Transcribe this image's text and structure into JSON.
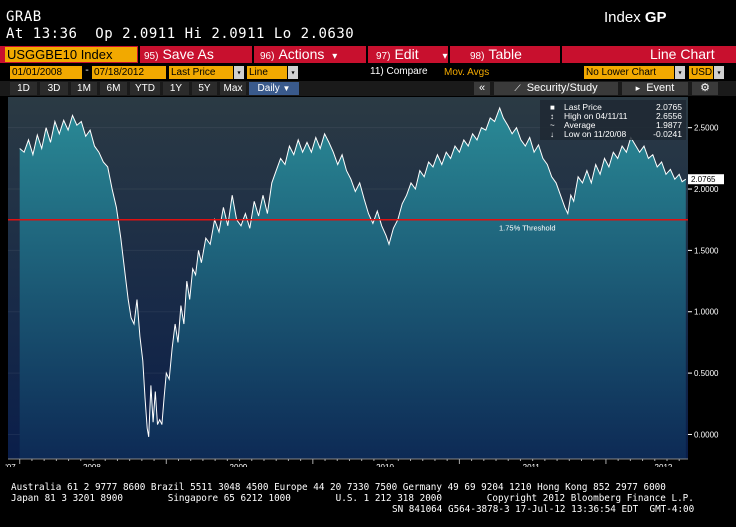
{
  "header": {
    "left_title": "GRAB",
    "right_title_prefix": "Index",
    "right_title_code": "GP",
    "quote_line": "At 13:36  Op 2.0911 Hi 2.0911 Lo 2.0630"
  },
  "toolbar": {
    "ticker": "USGGBE10 Index",
    "save_num": "95)",
    "save_label": "Save As",
    "actions_num": "96)",
    "actions_label": "Actions",
    "actions_arrow": "▾",
    "edit_num": "97)",
    "edit_label": "Edit",
    "edit_arrow": "▾",
    "table_num": "98)",
    "table_label": "Table",
    "chart_type": "Line Chart"
  },
  "controls": {
    "start_date": "01/01/2008",
    "dash": "-",
    "end_date": "07/18/2012",
    "price_field": "Last Price",
    "line_type": "Line",
    "compare": "11) Compare",
    "mov_avgs": "Mov. Avgs",
    "lower_chart": "No Lower Chart",
    "currency": "USD"
  },
  "tabs": {
    "periods": [
      "1D",
      "3D",
      "1M",
      "6M",
      "YTD",
      "1Y",
      "5Y",
      "Max"
    ],
    "frequency": "Daily",
    "frequency_arrow": "▼",
    "collapse": "«",
    "security_study": "Security/Study",
    "event": "Event",
    "gear": "⚙"
  },
  "legend": {
    "rows": [
      {
        "label": "Last Price",
        "value": "2.0765"
      },
      {
        "label": "High on 04/11/11",
        "value": "2.6556"
      },
      {
        "label": "Average",
        "value": "1.9877"
      },
      {
        "label": "Low on 11/20/08",
        "value": "-0.0241"
      }
    ]
  },
  "chart_data": {
    "type": "area",
    "series": [
      {
        "name": "Last Price",
        "color": "#ffffff",
        "fill_top": "#2a8a96",
        "fill_bottom": "#0d2a55"
      }
    ],
    "ylim": [
      -0.2,
      2.75
    ],
    "yticks": [
      0.0,
      0.5,
      1.0,
      1.5,
      2.0,
      2.5
    ],
    "ytick_labels": [
      "0.0000",
      "0.5000",
      "1.0000",
      "1.5000",
      "2.0000",
      "2.5000"
    ],
    "x_tick_labels": [
      "'07",
      "2008",
      "2009",
      "2010",
      "2011",
      "2012"
    ],
    "x_tick_years": [
      2007.97,
      2008.5,
      2009.5,
      2010.5,
      2011.5,
      2012.4
    ],
    "threshold": {
      "value": 1.75,
      "label": "1.75% Threshold",
      "color": "#e01010"
    },
    "last_price_label": "2.0765",
    "points": [
      [
        2008.0,
        2.33
      ],
      [
        2008.03,
        2.3
      ],
      [
        2008.06,
        2.4
      ],
      [
        2008.09,
        2.28
      ],
      [
        2008.12,
        2.44
      ],
      [
        2008.15,
        2.33
      ],
      [
        2008.18,
        2.5
      ],
      [
        2008.21,
        2.38
      ],
      [
        2008.24,
        2.55
      ],
      [
        2008.27,
        2.45
      ],
      [
        2008.3,
        2.56
      ],
      [
        2008.33,
        2.48
      ],
      [
        2008.36,
        2.6
      ],
      [
        2008.39,
        2.52
      ],
      [
        2008.42,
        2.55
      ],
      [
        2008.45,
        2.43
      ],
      [
        2008.48,
        2.48
      ],
      [
        2008.51,
        2.35
      ],
      [
        2008.54,
        2.3
      ],
      [
        2008.57,
        2.22
      ],
      [
        2008.6,
        2.18
      ],
      [
        2008.63,
        2.0
      ],
      [
        2008.66,
        1.85
      ],
      [
        2008.69,
        1.6
      ],
      [
        2008.72,
        1.3
      ],
      [
        2008.74,
        1.1
      ],
      [
        2008.76,
        0.95
      ],
      [
        2008.78,
        0.9
      ],
      [
        2008.8,
        1.1
      ],
      [
        2008.82,
        0.8
      ],
      [
        2008.84,
        0.6
      ],
      [
        2008.855,
        0.3
      ],
      [
        2008.87,
        0.05
      ],
      [
        2008.88,
        -0.02
      ],
      [
        2008.895,
        0.4
      ],
      [
        2008.91,
        0.1
      ],
      [
        2008.925,
        0.35
      ],
      [
        2008.94,
        0.08
      ],
      [
        2008.955,
        0.12
      ],
      [
        2008.97,
        0.08
      ],
      [
        2008.985,
        0.3
      ],
      [
        2009.0,
        0.5
      ],
      [
        2009.02,
        0.45
      ],
      [
        2009.04,
        0.7
      ],
      [
        2009.06,
        0.9
      ],
      [
        2009.08,
        0.75
      ],
      [
        2009.1,
        1.05
      ],
      [
        2009.12,
        0.9
      ],
      [
        2009.14,
        1.25
      ],
      [
        2009.16,
        1.1
      ],
      [
        2009.18,
        1.35
      ],
      [
        2009.2,
        1.3
      ],
      [
        2009.22,
        1.5
      ],
      [
        2009.24,
        1.4
      ],
      [
        2009.27,
        1.6
      ],
      [
        2009.3,
        1.55
      ],
      [
        2009.33,
        1.75
      ],
      [
        2009.36,
        1.65
      ],
      [
        2009.39,
        1.85
      ],
      [
        2009.42,
        1.7
      ],
      [
        2009.45,
        1.95
      ],
      [
        2009.48,
        1.75
      ],
      [
        2009.51,
        1.7
      ],
      [
        2009.54,
        1.8
      ],
      [
        2009.57,
        1.68
      ],
      [
        2009.6,
        1.9
      ],
      [
        2009.63,
        1.78
      ],
      [
        2009.66,
        1.95
      ],
      [
        2009.69,
        1.8
      ],
      [
        2009.72,
        2.05
      ],
      [
        2009.75,
        2.15
      ],
      [
        2009.78,
        2.25
      ],
      [
        2009.81,
        2.2
      ],
      [
        2009.84,
        2.35
      ],
      [
        2009.87,
        2.28
      ],
      [
        2009.9,
        2.4
      ],
      [
        2009.93,
        2.3
      ],
      [
        2009.96,
        2.38
      ],
      [
        2009.99,
        2.3
      ],
      [
        2010.02,
        2.42
      ],
      [
        2010.05,
        2.33
      ],
      [
        2010.08,
        2.45
      ],
      [
        2010.11,
        2.38
      ],
      [
        2010.14,
        2.3
      ],
      [
        2010.17,
        2.2
      ],
      [
        2010.2,
        2.28
      ],
      [
        2010.23,
        2.15
      ],
      [
        2010.26,
        2.08
      ],
      [
        2010.29,
        1.98
      ],
      [
        2010.32,
        2.05
      ],
      [
        2010.35,
        1.92
      ],
      [
        2010.38,
        1.8
      ],
      [
        2010.41,
        1.72
      ],
      [
        2010.44,
        1.82
      ],
      [
        2010.47,
        1.7
      ],
      [
        2010.5,
        1.62
      ],
      [
        2010.52,
        1.55
      ],
      [
        2010.55,
        1.68
      ],
      [
        2010.58,
        1.75
      ],
      [
        2010.61,
        1.88
      ],
      [
        2010.64,
        1.95
      ],
      [
        2010.67,
        2.05
      ],
      [
        2010.7,
        2.0
      ],
      [
        2010.73,
        2.15
      ],
      [
        2010.76,
        2.1
      ],
      [
        2010.79,
        2.22
      ],
      [
        2010.82,
        2.18
      ],
      [
        2010.85,
        2.28
      ],
      [
        2010.88,
        2.2
      ],
      [
        2010.91,
        2.3
      ],
      [
        2010.94,
        2.25
      ],
      [
        2010.97,
        2.35
      ],
      [
        2011.0,
        2.3
      ],
      [
        2011.03,
        2.4
      ],
      [
        2011.06,
        2.35
      ],
      [
        2011.09,
        2.45
      ],
      [
        2011.12,
        2.4
      ],
      [
        2011.15,
        2.5
      ],
      [
        2011.18,
        2.48
      ],
      [
        2011.21,
        2.58
      ],
      [
        2011.24,
        2.55
      ],
      [
        2011.275,
        2.66
      ],
      [
        2011.3,
        2.58
      ],
      [
        2011.33,
        2.52
      ],
      [
        2011.36,
        2.45
      ],
      [
        2011.39,
        2.5
      ],
      [
        2011.42,
        2.4
      ],
      [
        2011.45,
        2.35
      ],
      [
        2011.48,
        2.42
      ],
      [
        2011.51,
        2.3
      ],
      [
        2011.54,
        2.36
      ],
      [
        2011.57,
        2.25
      ],
      [
        2011.6,
        2.2
      ],
      [
        2011.63,
        2.1
      ],
      [
        2011.66,
        2.05
      ],
      [
        2011.69,
        1.95
      ],
      [
        2011.72,
        1.85
      ],
      [
        2011.74,
        1.8
      ],
      [
        2011.76,
        1.95
      ],
      [
        2011.78,
        1.9
      ],
      [
        2011.81,
        2.1
      ],
      [
        2011.84,
        2.05
      ],
      [
        2011.87,
        2.15
      ],
      [
        2011.9,
        2.05
      ],
      [
        2011.93,
        2.2
      ],
      [
        2011.96,
        2.12
      ],
      [
        2011.99,
        2.25
      ],
      [
        2012.02,
        2.18
      ],
      [
        2012.05,
        2.3
      ],
      [
        2012.08,
        2.25
      ],
      [
        2012.11,
        2.35
      ],
      [
        2012.14,
        2.3
      ],
      [
        2012.17,
        2.42
      ],
      [
        2012.2,
        2.36
      ],
      [
        2012.23,
        2.3
      ],
      [
        2012.26,
        2.35
      ],
      [
        2012.29,
        2.25
      ],
      [
        2012.32,
        2.28
      ],
      [
        2012.35,
        2.18
      ],
      [
        2012.38,
        2.22
      ],
      [
        2012.41,
        2.12
      ],
      [
        2012.44,
        2.16
      ],
      [
        2012.47,
        2.08
      ],
      [
        2012.5,
        2.12
      ],
      [
        2012.52,
        2.06
      ],
      [
        2012.545,
        2.08
      ]
    ]
  },
  "footer": {
    "line1": "Australia 61 2 9777 8600 Brazil 5511 3048 4500 Europe 44 20 7330 7500 Germany 49 69 9204 1210 Hong Kong 852 2977 6000",
    "line2": "Japan 81 3 3201 8900        Singapore 65 6212 1000        U.S. 1 212 318 2000        Copyright 2012 Bloomberg Finance L.P.",
    "line3": "SN 841064 G564-3878-3 17-Jul-12 13:36:54 EDT  GMT-4:00"
  },
  "colors": {
    "accent_red": "#c8102e",
    "field_orange": "#f2a900",
    "chart_bg_top": "#2b3a44",
    "chart_bg_bottom": "#0a1e4a"
  }
}
